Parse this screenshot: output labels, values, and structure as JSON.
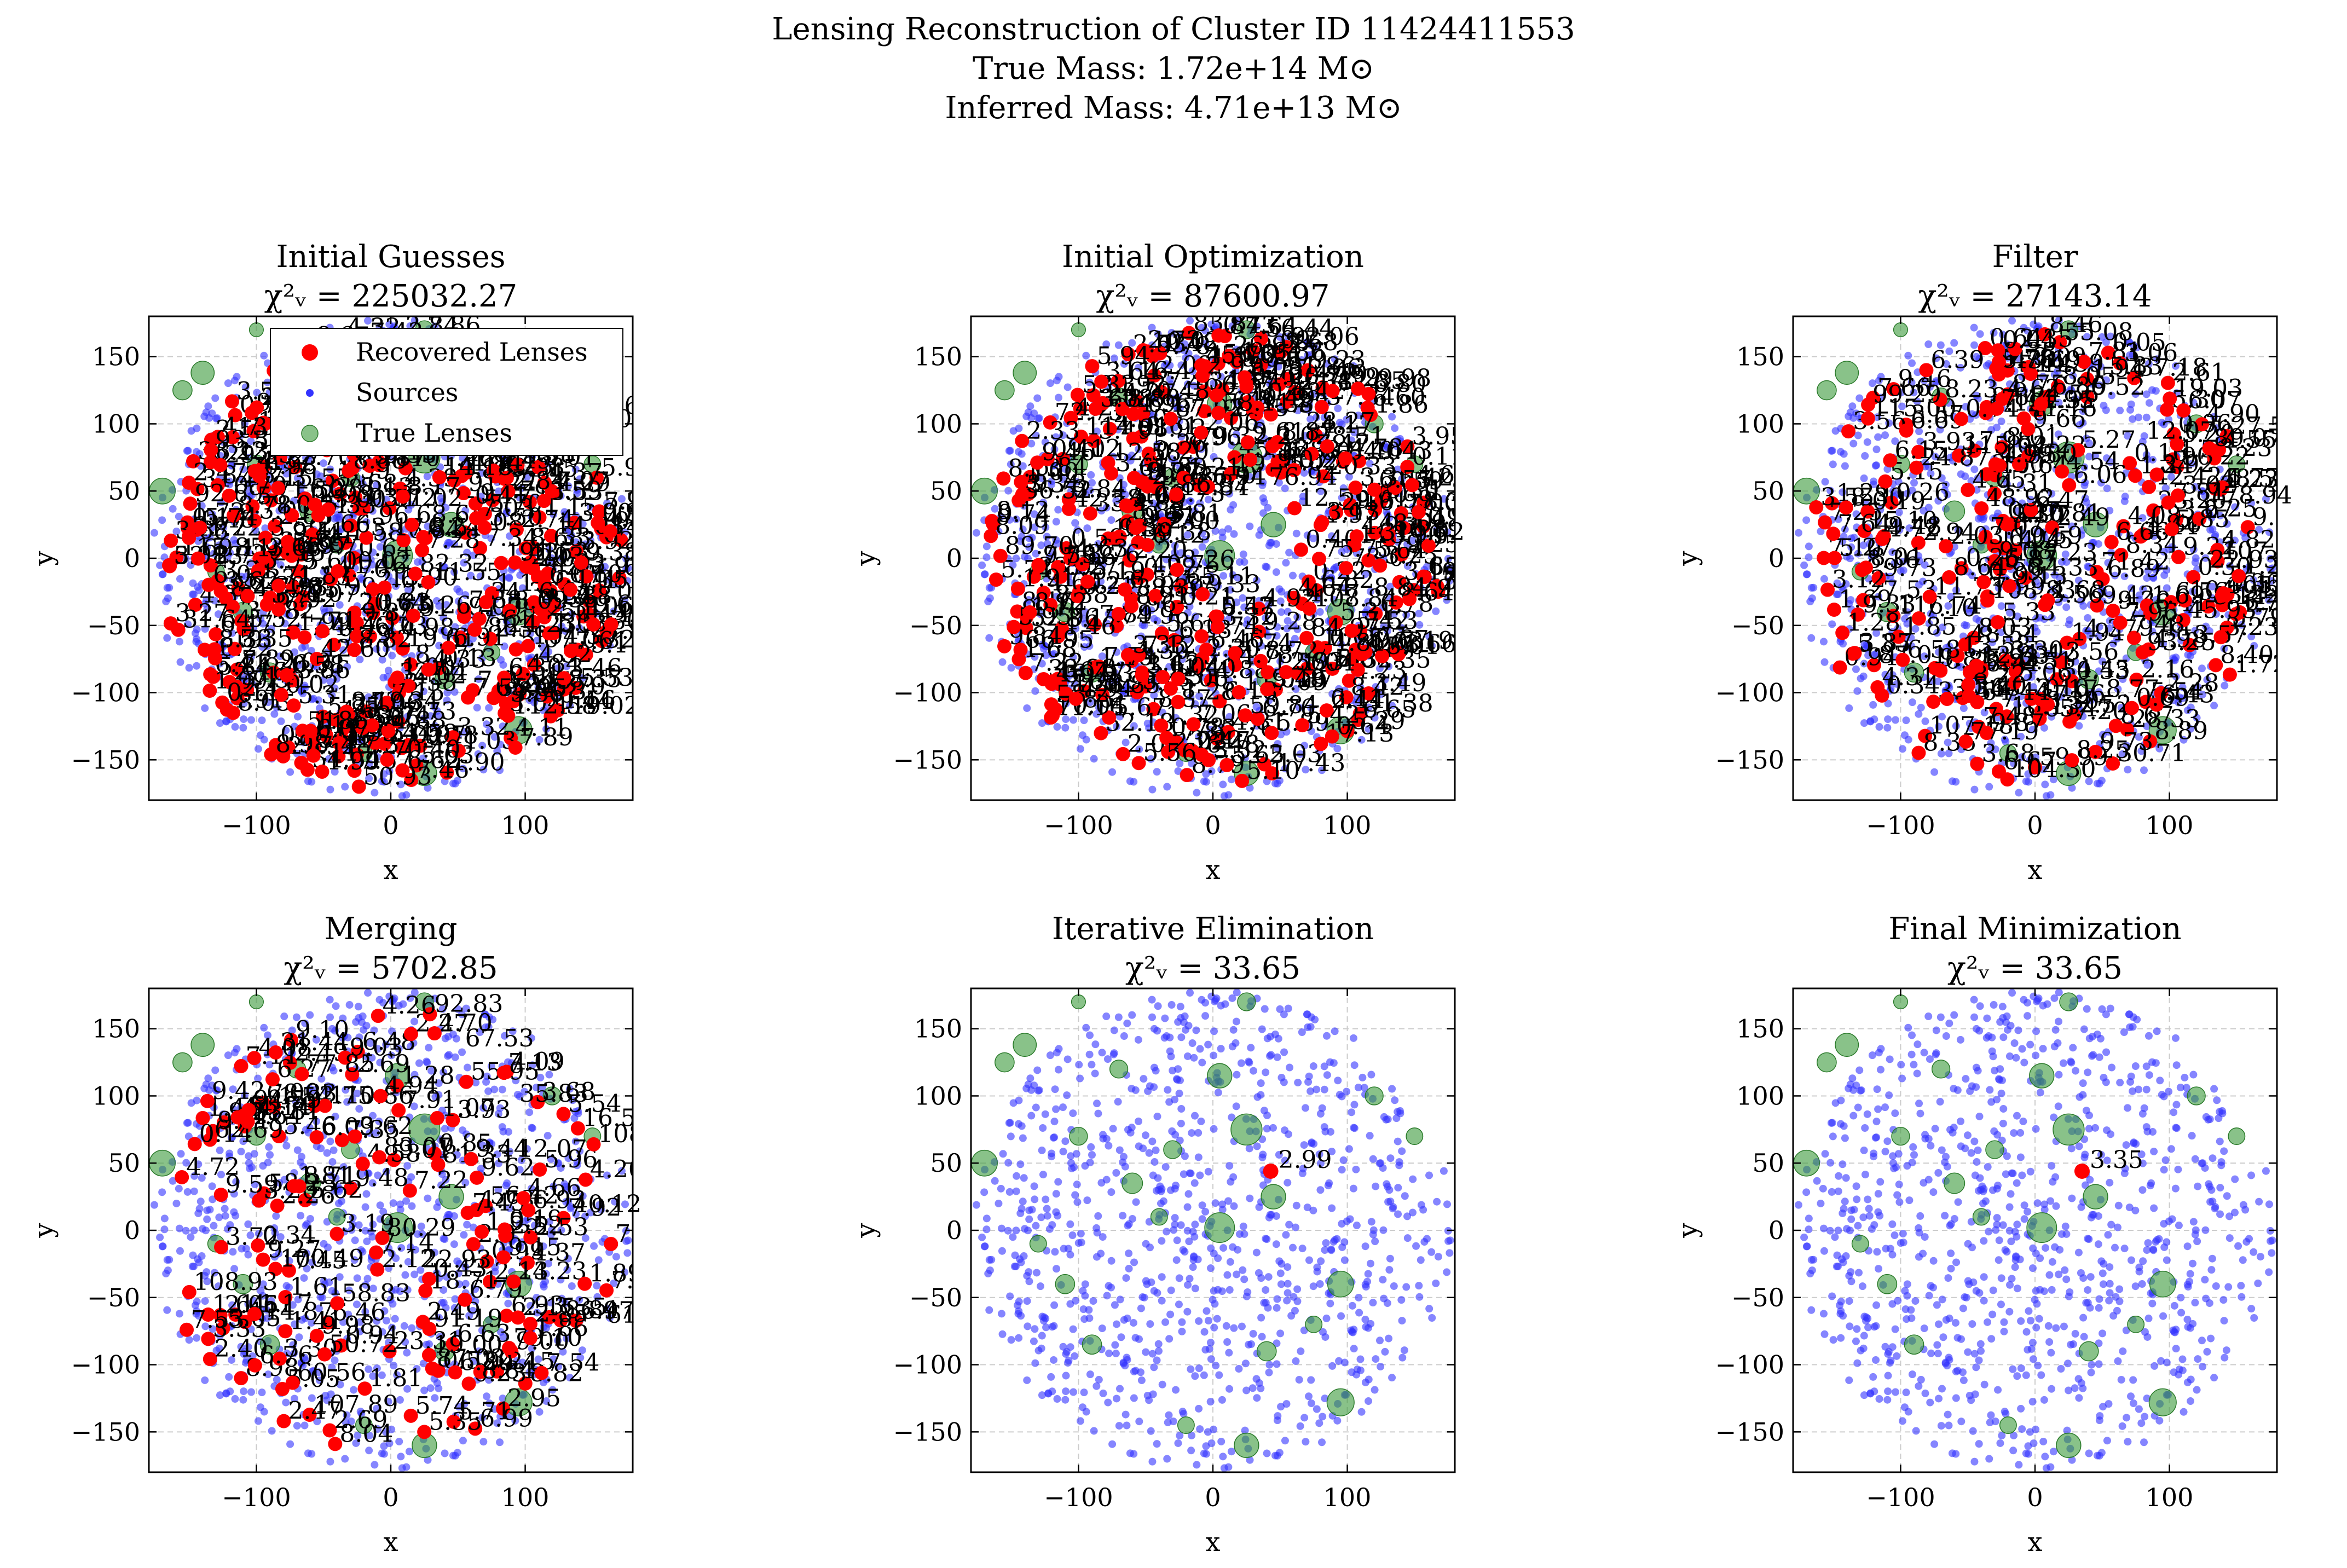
{
  "figure": {
    "title_lines": [
      "Lensing Reconstruction of Cluster ID 11424411553",
      "True Mass: 1.72e+14 M⊙",
      "Inferred Mass: 4.71e+13 M⊙"
    ]
  },
  "colors": {
    "recovered": "#ff0000",
    "sources": "#3333ff",
    "true": "#3a9a3a",
    "grid": "#cccccc"
  },
  "legend": {
    "placement": "upper-left",
    "entries": [
      {
        "label": "Recovered Lenses",
        "color": "#ff0000",
        "marker": "circle"
      },
      {
        "label": "Sources",
        "color": "#3333ff",
        "marker": "small-circle"
      },
      {
        "label": "True Lenses",
        "color": "#3a9a3a",
        "marker": "circle"
      }
    ]
  },
  "chart_data": [
    {
      "type": "scatter",
      "title": "Initial Guesses",
      "chi_label": "χ²ᵥ = 225032.27",
      "xlabel": "x",
      "ylabel": "y",
      "xlim": [
        -180,
        180
      ],
      "ylim": [
        -180,
        180
      ],
      "xticks": [
        -100,
        0,
        100
      ],
      "yticks": [
        -150,
        -100,
        -50,
        0,
        50,
        100,
        150
      ],
      "grid": true,
      "lens_count_estimate": 380,
      "sample_labels": [
        "41.73",
        "-0.41",
        "24.23"
      ]
    },
    {
      "type": "scatter",
      "title": "Initial Optimization",
      "chi_label": "χ²ᵥ = 87600.97",
      "xlabel": "x",
      "ylabel": "y",
      "xlim": [
        -180,
        180
      ],
      "ylim": [
        -180,
        180
      ],
      "xticks": [
        -100,
        0,
        100
      ],
      "yticks": [
        -150,
        -100,
        -50,
        0,
        50,
        100,
        150
      ],
      "grid": true,
      "lens_count_estimate": 340,
      "sample_labels": [
        "31.86",
        "28.27",
        "76.94",
        "314.02",
        "8.84",
        "4.81",
        "6.11"
      ]
    },
    {
      "type": "scatter",
      "title": "Filter",
      "chi_label": "χ²ᵥ = 27143.14",
      "xlabel": "x",
      "ylabel": "y",
      "xlim": [
        -180,
        180
      ],
      "ylim": [
        -180,
        180
      ],
      "xticks": [
        -100,
        0,
        100
      ],
      "yticks": [
        -150,
        -100,
        -50,
        0,
        50,
        100,
        150
      ],
      "grid": true,
      "lens_count_estimate": 230,
      "sample_labels": [
        "5.83",
        "12.07",
        "78.94",
        "22.93",
        "7.48",
        "8.77"
      ]
    },
    {
      "type": "scatter",
      "title": "Merging",
      "chi_label": "χ²ᵥ = 5702.85",
      "xlabel": "x",
      "ylabel": "y",
      "xlim": [
        -180,
        180
      ],
      "ylim": [
        -180,
        180
      ],
      "xticks": [
        -100,
        0,
        100
      ],
      "yticks": [
        -150,
        -100,
        -50,
        0,
        50,
        100,
        150
      ],
      "grid": true,
      "lens_count_estimate": 150,
      "sample_labels": [
        "67.53",
        "35.83",
        "12.07",
        "40.12",
        "22.93",
        "61",
        "8.84"
      ]
    },
    {
      "type": "scatter",
      "title": "Iterative Elimination",
      "chi_label": "χ²ᵥ = 33.65",
      "xlabel": "x",
      "ylabel": "y",
      "xlim": [
        -180,
        180
      ],
      "ylim": [
        -180,
        180
      ],
      "xticks": [
        -100,
        0,
        100
      ],
      "yticks": [
        -150,
        -100,
        -50,
        0,
        50,
        100,
        150
      ],
      "grid": true,
      "recovered_lenses": [
        {
          "x": 43,
          "y": 44,
          "label": "2.99"
        }
      ]
    },
    {
      "type": "scatter",
      "title": "Final Minimization",
      "chi_label": "χ²ᵥ = 33.65",
      "xlabel": "x",
      "ylabel": "y",
      "xlim": [
        -180,
        180
      ],
      "ylim": [
        -180,
        180
      ],
      "xticks": [
        -100,
        0,
        100
      ],
      "yticks": [
        -150,
        -100,
        -50,
        0,
        50,
        100,
        150
      ],
      "grid": true,
      "recovered_lenses": [
        {
          "x": 35,
          "y": 44,
          "label": "3.35"
        }
      ]
    }
  ],
  "true_lenses": [
    {
      "x": -100,
      "y": 170,
      "s": 0.4
    },
    {
      "x": -140,
      "y": 138,
      "s": 1.1
    },
    {
      "x": -155,
      "y": 125,
      "s": 0.8
    },
    {
      "x": -170,
      "y": 50,
      "s": 1.3
    },
    {
      "x": -100,
      "y": 70,
      "s": 0.7
    },
    {
      "x": -60,
      "y": 35,
      "s": 0.9
    },
    {
      "x": -40,
      "y": 10,
      "s": 0.6
    },
    {
      "x": 5,
      "y": 2,
      "s": 1.6
    },
    {
      "x": 25,
      "y": 75,
      "s": 1.7
    },
    {
      "x": 45,
      "y": 25,
      "s": 1.2
    },
    {
      "x": 5,
      "y": 115,
      "s": 1.2
    },
    {
      "x": 25,
      "y": 170,
      "s": 0.7
    },
    {
      "x": 95,
      "y": -40,
      "s": 1.3
    },
    {
      "x": 95,
      "y": -128,
      "s": 1.4
    },
    {
      "x": 25,
      "y": -160,
      "s": 1.2
    },
    {
      "x": -90,
      "y": -85,
      "s": 0.8
    },
    {
      "x": -110,
      "y": -40,
      "s": 0.8
    },
    {
      "x": 40,
      "y": -90,
      "s": 0.8
    },
    {
      "x": -20,
      "y": -145,
      "s": 0.6
    },
    {
      "x": 75,
      "y": -70,
      "s": 0.6
    },
    {
      "x": -70,
      "y": 120,
      "s": 0.7
    },
    {
      "x": 150,
      "y": 70,
      "s": 0.6
    },
    {
      "x": -130,
      "y": -10,
      "s": 0.6
    },
    {
      "x": 120,
      "y": 100,
      "s": 0.7
    },
    {
      "x": -30,
      "y": 60,
      "s": 0.7
    }
  ]
}
